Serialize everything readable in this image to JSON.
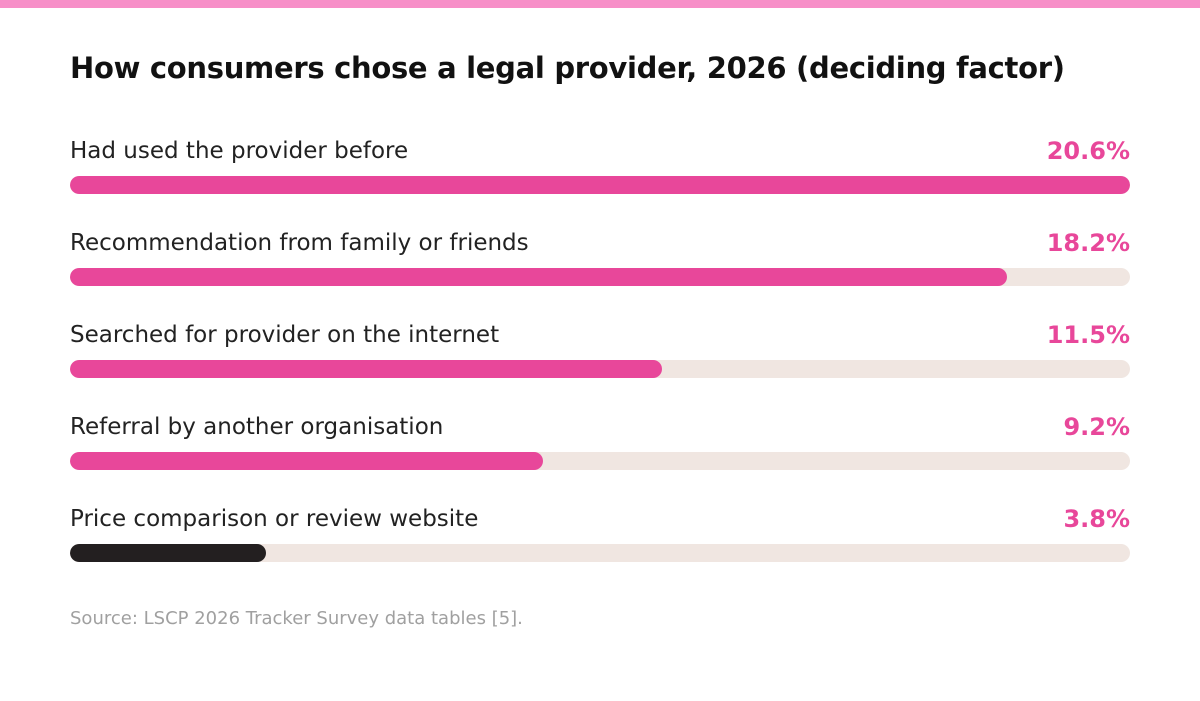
{
  "chart_data": {
    "type": "bar",
    "orientation": "horizontal",
    "title": "How consumers chose a legal provider, 2026 (deciding factor)",
    "categories": [
      "Had used the provider before",
      "Recommendation from family or friends",
      "Searched for provider on the internet",
      "Referral by another organisation",
      "Price comparison or review website"
    ],
    "values": [
      20.6,
      18.2,
      11.5,
      9.2,
      3.8
    ],
    "value_labels": [
      "20.6%",
      "18.2%",
      "11.5%",
      "9.2%",
      "3.8%"
    ],
    "unit": "%",
    "xlim": [
      0,
      20.6
    ],
    "grid": false,
    "legend": "none",
    "highlight_last": true
  },
  "source_note": "Source: LSCP 2026 Tracker Survey data tables [5].",
  "colors": {
    "accent": "#e8479a",
    "highlight": "#231f20",
    "track": "#f0e6e1",
    "top_stripe": "#f78fc8",
    "title_text": "#111111",
    "label_text": "#222222",
    "source_text": "#a0a0a0"
  }
}
